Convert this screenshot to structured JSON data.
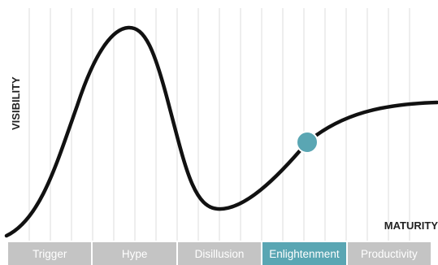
{
  "diagram": {
    "y_axis_label": "VISIBILITY",
    "x_axis_label": "MATURITY",
    "phases": [
      {
        "label": "Trigger",
        "active": false
      },
      {
        "label": "Hype",
        "active": false
      },
      {
        "label": "Disillusion",
        "active": false
      },
      {
        "label": "Enlightenment",
        "active": true
      },
      {
        "label": "Productivity",
        "active": false
      }
    ],
    "colors": {
      "curve": "#111111",
      "grid": "#e9e9e9",
      "phase_inactive": "#c4c4c4",
      "phase_active": "#5aa6b3",
      "marker": "#5aa6b3",
      "marker_stroke": "#ffffff"
    }
  }
}
